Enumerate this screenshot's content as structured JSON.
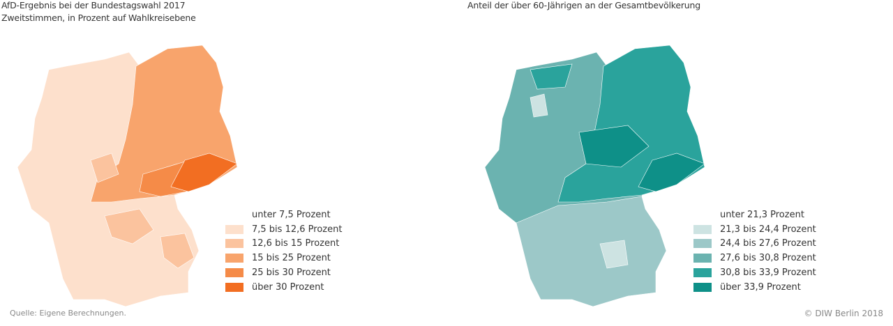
{
  "left": {
    "title": "AfD-Ergebnis bei der Bundestagswahl 2017",
    "subtitle": "Zweitstimmen, in Prozent auf Wahlkreisebene",
    "legend": [
      {
        "label": "unter 7,5 Prozent",
        "color": "#ffffff"
      },
      {
        "label": "7,5 bis 12,6 Prozent",
        "color": "#fde0cc"
      },
      {
        "label": "12,6 bis 15 Prozent",
        "color": "#fbc39e"
      },
      {
        "label": "15 bis 25 Prozent",
        "color": "#f8a46c"
      },
      {
        "label": "25 bis 30 Prozent",
        "color": "#f58b48"
      },
      {
        "label": "über 30 Prozent",
        "color": "#f26e22"
      }
    ]
  },
  "right": {
    "title": "Anteil der über 60-Jährigen an der Gesamtbevölkerung",
    "legend": [
      {
        "label": "unter 21,3 Prozent",
        "color": "#ffffff"
      },
      {
        "label": "21,3 bis 24,4 Prozent",
        "color": "#cde3e2"
      },
      {
        "label": "24,4 bis 27,6 Prozent",
        "color": "#9cc8c8"
      },
      {
        "label": "27,6 bis 30,8 Prozent",
        "color": "#6bb3b0"
      },
      {
        "label": "30,8 bis 33,9 Prozent",
        "color": "#2aa39c"
      },
      {
        "label": "über 33,9 Prozent",
        "color": "#0e9088"
      }
    ]
  },
  "footer": {
    "source": "Quelle: Eigene Berechnungen.",
    "copyright": "© DIW Berlin 2018"
  }
}
